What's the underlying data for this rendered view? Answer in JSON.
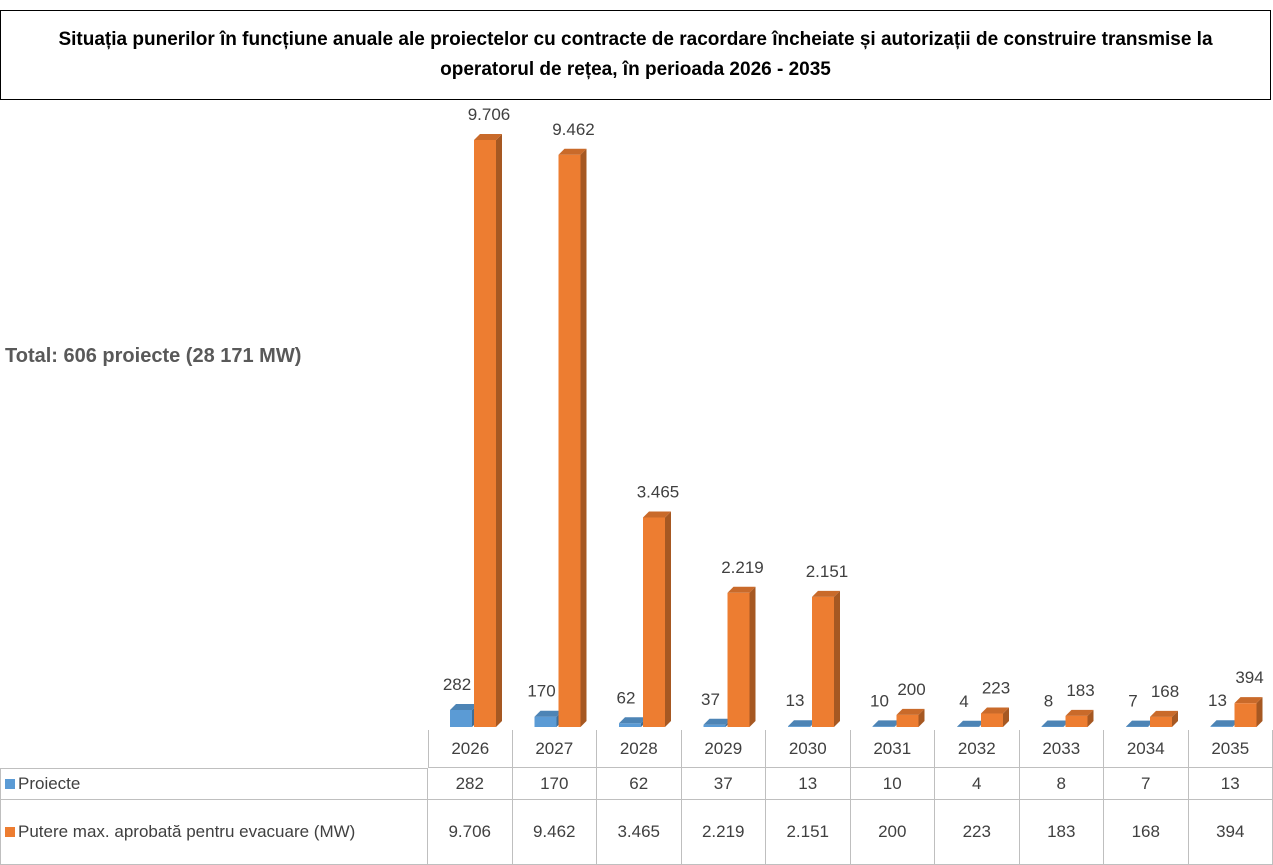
{
  "chart_data": {
    "type": "bar",
    "title": "Situația punerilor în funcțiune anuale ale proiectelor cu contracte de racordare încheiate și autorizații de construire transmise la operatorul de rețea, în perioada 2026 - 2035",
    "annotation": "Total: 606 proiecte (28 171 MW)",
    "categories": [
      "2026",
      "2027",
      "2028",
      "2029",
      "2030",
      "2031",
      "2032",
      "2033",
      "2034",
      "2035"
    ],
    "series": [
      {
        "name": "Proiecte",
        "color": "#5b9bd5",
        "values": [
          282,
          170,
          62,
          37,
          13,
          10,
          4,
          8,
          7,
          13
        ]
      },
      {
        "name": "Putere max. aprobată pentru evacuare (MW)",
        "color": "#ed7d31",
        "values": [
          9706,
          9462,
          3465,
          2219,
          2151,
          200,
          223,
          183,
          168,
          394
        ],
        "value_labels": [
          "9.706",
          "9.462",
          "3.465",
          "2.219",
          "2.151",
          "200",
          "223",
          "183",
          "168",
          "394"
        ]
      }
    ]
  }
}
